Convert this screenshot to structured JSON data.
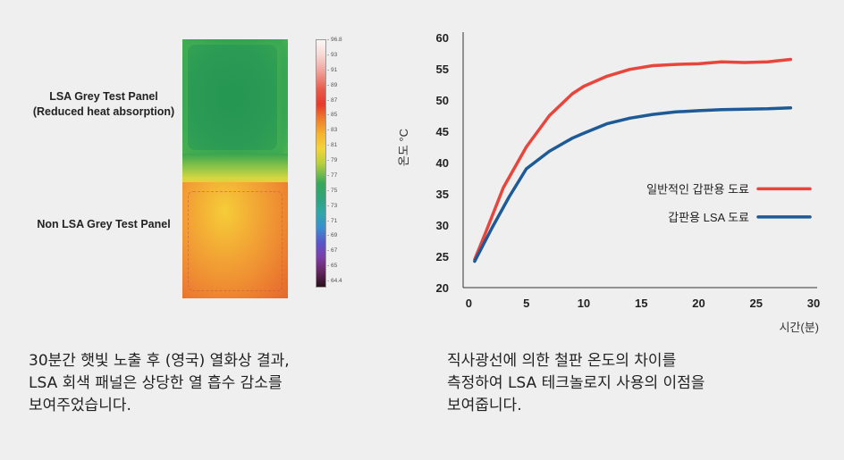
{
  "left_figure": {
    "top_panel_label_line1": "LSA Grey Test Panel",
    "top_panel_label_line2": "(Reduced heat absorption)",
    "bottom_panel_label": "Non LSA Grey Test Panel",
    "scale_labels": [
      "96.8",
      "93",
      "91",
      "89",
      "87",
      "85",
      "83",
      "81",
      "79",
      "77",
      "75",
      "73",
      "71",
      "69",
      "67",
      "65",
      "64.4"
    ],
    "caption_lines": [
      "30분간 햇빛 노출 후 (영국) 열화상 결과,",
      "LSA 회색 패널은 상당한 열 흡수 감소를",
      "보여주었습니다."
    ]
  },
  "chart_data": {
    "type": "line",
    "xlabel": "시간(분)",
    "ylabel": "온도 °C",
    "xlim": [
      -0.5,
      30
    ],
    "ylim": [
      20,
      60
    ],
    "xticks": [
      0,
      5,
      10,
      15,
      20,
      25,
      30
    ],
    "yticks": [
      20,
      25,
      30,
      35,
      40,
      45,
      50,
      55,
      60
    ],
    "grid": false,
    "legend_position": "right-middle",
    "series": [
      {
        "name": "일반적인 갑판용 도료",
        "color": "#e8463c",
        "x": [
          0.5,
          1.5,
          3,
          5,
          7,
          9,
          10,
          12,
          14,
          16,
          18,
          20,
          22,
          24,
          26,
          28
        ],
        "y": [
          24.5,
          29,
          36,
          42.5,
          47.5,
          51,
          52.2,
          53.8,
          54.9,
          55.5,
          55.7,
          55.8,
          56.1,
          56.0,
          56.1,
          56.5
        ]
      },
      {
        "name": "갑판용 LSA 도료",
        "color": "#1d5a96",
        "x": [
          0.5,
          2,
          3.5,
          5,
          7,
          9,
          10,
          12,
          14,
          16,
          18,
          20,
          22,
          24,
          26,
          28
        ],
        "y": [
          24.2,
          29.5,
          34.5,
          39,
          41.8,
          43.9,
          44.7,
          46.2,
          47.1,
          47.7,
          48.1,
          48.3,
          48.45,
          48.55,
          48.6,
          48.75
        ]
      }
    ]
  },
  "right_caption_lines": [
    "직사광선에 의한 철판 온도의 차이를",
    "측정하여 LSA 테크놀로지 사용의 이점을",
    "보여줍니다."
  ]
}
